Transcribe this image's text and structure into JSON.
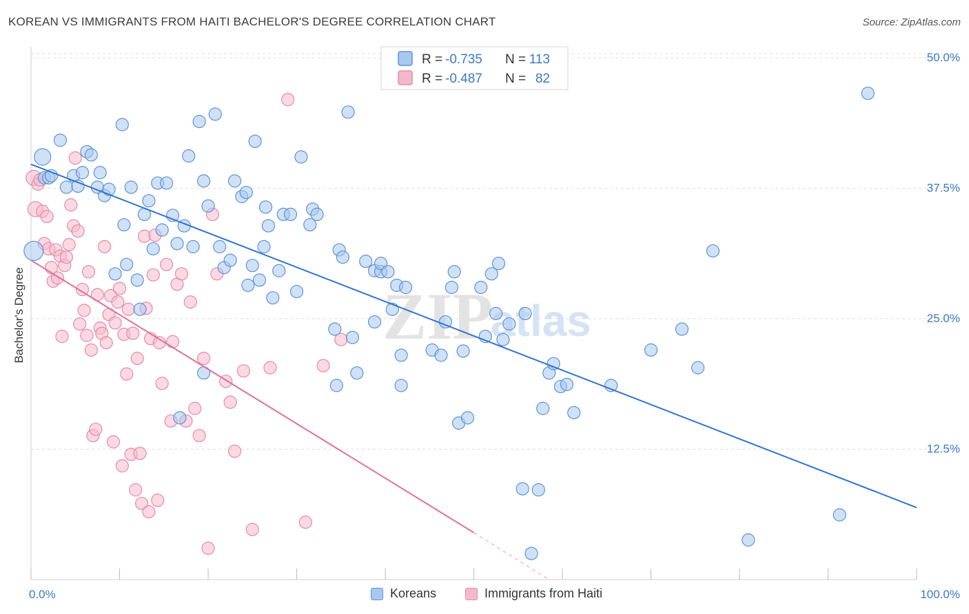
{
  "title": "KOREAN VS IMMIGRANTS FROM HAITI BACHELOR'S DEGREE CORRELATION CHART",
  "source": "Source: ZipAtlas.com",
  "watermark": {
    "zip": "ZIP",
    "atlas": "atlas"
  },
  "colors": {
    "blue_fill": "#a9c8ef",
    "blue_stroke": "#5b93d6",
    "blue_line": "#2e74d0",
    "blue_text": "#3b78c9",
    "pink_fill": "#f5b9cc",
    "pink_stroke": "#e48aa8",
    "pink_line": "#e0709a",
    "grid": "#dcdcdc",
    "text": "#333333"
  },
  "legend_box": {
    "rows": [
      {
        "r_label": "R =",
        "r_value": "-0.735",
        "n_label": "N =",
        "n_value": "113"
      },
      {
        "r_label": "R =",
        "r_value": "-0.487",
        "n_label": "N =",
        "n_value": "82"
      }
    ]
  },
  "legend_bottom": {
    "koreans": "Koreans",
    "haiti": "Immigrants from Haiti"
  },
  "chart_data": {
    "type": "scatter",
    "xlabel": "",
    "ylabel": "Bachelor's Degree",
    "xlim": [
      0,
      100
    ],
    "ylim": [
      0,
      50
    ],
    "x_tick_labels": [
      "0.0%",
      "100.0%"
    ],
    "y_ticks": [
      12.5,
      25.0,
      37.5,
      50.0
    ],
    "y_tick_labels": [
      "12.5%",
      "25.0%",
      "37.5%",
      "50.0%"
    ],
    "grid": "horizontal dashed",
    "legend_position": "top-center",
    "series": [
      {
        "name": "Koreans",
        "r": -0.735,
        "n": 113,
        "trend": {
          "x": [
            0,
            100
          ],
          "y": [
            39.8,
            6.9
          ]
        },
        "points": [
          [
            0.3,
            31.5
          ],
          [
            1.3,
            40.5
          ],
          [
            1.5,
            38.5
          ],
          [
            2.0,
            38.5
          ],
          [
            2.3,
            38.7
          ],
          [
            3.3,
            42.1
          ],
          [
            4.0,
            37.6
          ],
          [
            4.8,
            38.7
          ],
          [
            5.3,
            37.7
          ],
          [
            5.8,
            39.0
          ],
          [
            6.3,
            41.0
          ],
          [
            6.8,
            40.7
          ],
          [
            7.5,
            37.6
          ],
          [
            7.8,
            39.0
          ],
          [
            8.3,
            36.8
          ],
          [
            8.8,
            37.4
          ],
          [
            9.5,
            29.3
          ],
          [
            10.3,
            43.6
          ],
          [
            10.5,
            34.0
          ],
          [
            10.8,
            30.2
          ],
          [
            11.3,
            37.6
          ],
          [
            12.0,
            28.7
          ],
          [
            12.3,
            25.9
          ],
          [
            12.8,
            35.0
          ],
          [
            13.3,
            36.3
          ],
          [
            13.8,
            31.7
          ],
          [
            14.3,
            38.0
          ],
          [
            14.8,
            33.5
          ],
          [
            15.3,
            38.0
          ],
          [
            16.0,
            34.9
          ],
          [
            16.5,
            32.2
          ],
          [
            16.8,
            15.5
          ],
          [
            17.3,
            33.9
          ],
          [
            17.8,
            40.6
          ],
          [
            18.3,
            31.9
          ],
          [
            19.0,
            43.9
          ],
          [
            19.5,
            38.2
          ],
          [
            19.5,
            19.8
          ],
          [
            20.0,
            35.8
          ],
          [
            20.8,
            44.6
          ],
          [
            21.3,
            31.9
          ],
          [
            21.8,
            29.9
          ],
          [
            22.5,
            30.6
          ],
          [
            23.0,
            38.2
          ],
          [
            23.8,
            36.7
          ],
          [
            24.3,
            37.1
          ],
          [
            24.5,
            28.2
          ],
          [
            25.0,
            30.1
          ],
          [
            25.3,
            42.0
          ],
          [
            25.8,
            28.7
          ],
          [
            26.3,
            31.9
          ],
          [
            26.5,
            35.7
          ],
          [
            26.8,
            33.9
          ],
          [
            27.3,
            27.0
          ],
          [
            28.0,
            29.6
          ],
          [
            28.5,
            35.0
          ],
          [
            29.3,
            35.0
          ],
          [
            30.0,
            27.6
          ],
          [
            30.5,
            40.5
          ],
          [
            31.5,
            34.0
          ],
          [
            31.8,
            35.5
          ],
          [
            32.3,
            35.0
          ],
          [
            34.3,
            24.0
          ],
          [
            34.5,
            18.6
          ],
          [
            34.8,
            31.6
          ],
          [
            35.2,
            30.9
          ],
          [
            35.8,
            44.8
          ],
          [
            36.3,
            23.2
          ],
          [
            36.8,
            19.8
          ],
          [
            37.8,
            30.5
          ],
          [
            38.8,
            29.6
          ],
          [
            38.8,
            24.7
          ],
          [
            39.5,
            29.5
          ],
          [
            39.5,
            30.3
          ],
          [
            40.3,
            29.5
          ],
          [
            40.8,
            25.9
          ],
          [
            41.3,
            28.2
          ],
          [
            41.8,
            21.5
          ],
          [
            41.8,
            18.6
          ],
          [
            42.3,
            28.0
          ],
          [
            45.3,
            22.0
          ],
          [
            46.3,
            21.5
          ],
          [
            46.8,
            24.7
          ],
          [
            47.5,
            28.0
          ],
          [
            47.8,
            29.5
          ],
          [
            48.3,
            15.0
          ],
          [
            48.8,
            21.9
          ],
          [
            49.3,
            15.5
          ],
          [
            50.8,
            28.0
          ],
          [
            51.3,
            23.3
          ],
          [
            52.0,
            29.3
          ],
          [
            52.5,
            25.5
          ],
          [
            52.8,
            30.3
          ],
          [
            53.3,
            23.0
          ],
          [
            54.0,
            24.5
          ],
          [
            55.5,
            8.7
          ],
          [
            55.8,
            25.5
          ],
          [
            56.5,
            2.5
          ],
          [
            57.3,
            8.6
          ],
          [
            57.8,
            16.4
          ],
          [
            58.5,
            19.8
          ],
          [
            59.0,
            20.7
          ],
          [
            59.8,
            18.5
          ],
          [
            60.5,
            18.7
          ],
          [
            61.3,
            16.0
          ],
          [
            65.5,
            18.6
          ],
          [
            70.0,
            22.0
          ],
          [
            73.5,
            24.0
          ],
          [
            75.3,
            20.3
          ],
          [
            77.0,
            31.5
          ],
          [
            81.0,
            3.8
          ],
          [
            91.3,
            6.2
          ],
          [
            94.5,
            46.6
          ]
        ]
      },
      {
        "name": "Immigrants from Haiti",
        "r": -0.487,
        "n": 82,
        "trend": {
          "x": [
            0,
            50
          ],
          "y": [
            30.6,
            4.5
          ]
        },
        "trend_dashed": {
          "x": [
            50,
            58.5
          ],
          "y": [
            4.5,
            0
          ]
        },
        "points": [
          [
            0.3,
            38.5
          ],
          [
            0.5,
            35.5
          ],
          [
            0.8,
            37.9
          ],
          [
            1.0,
            38.3
          ],
          [
            1.3,
            35.3
          ],
          [
            1.5,
            32.2
          ],
          [
            1.8,
            34.8
          ],
          [
            2.0,
            31.7
          ],
          [
            2.3,
            29.9
          ],
          [
            2.5,
            28.6
          ],
          [
            2.8,
            31.6
          ],
          [
            3.0,
            28.9
          ],
          [
            3.3,
            31.0
          ],
          [
            3.5,
            23.3
          ],
          [
            3.8,
            30.1
          ],
          [
            4.0,
            30.9
          ],
          [
            4.3,
            32.1
          ],
          [
            4.5,
            35.9
          ],
          [
            4.8,
            33.9
          ],
          [
            5.0,
            40.4
          ],
          [
            5.3,
            33.4
          ],
          [
            5.5,
            24.5
          ],
          [
            5.8,
            27.8
          ],
          [
            6.0,
            25.8
          ],
          [
            6.3,
            23.4
          ],
          [
            6.5,
            29.5
          ],
          [
            6.8,
            22.0
          ],
          [
            7.0,
            13.8
          ],
          [
            7.3,
            14.4
          ],
          [
            7.5,
            27.3
          ],
          [
            7.8,
            24.1
          ],
          [
            8.0,
            23.6
          ],
          [
            8.3,
            31.9
          ],
          [
            8.5,
            22.7
          ],
          [
            8.8,
            25.4
          ],
          [
            9.0,
            27.2
          ],
          [
            9.3,
            13.2
          ],
          [
            9.5,
            24.6
          ],
          [
            9.8,
            26.6
          ],
          [
            10.0,
            27.9
          ],
          [
            10.3,
            10.9
          ],
          [
            10.5,
            23.5
          ],
          [
            10.8,
            19.7
          ],
          [
            11.0,
            25.9
          ],
          [
            11.3,
            12.0
          ],
          [
            11.5,
            23.6
          ],
          [
            11.8,
            8.6
          ],
          [
            12.0,
            21.2
          ],
          [
            12.3,
            12.1
          ],
          [
            12.5,
            7.3
          ],
          [
            12.8,
            32.9
          ],
          [
            13.0,
            26.0
          ],
          [
            13.3,
            6.5
          ],
          [
            13.5,
            23.1
          ],
          [
            13.8,
            29.2
          ],
          [
            14.0,
            33.0
          ],
          [
            14.3,
            7.6
          ],
          [
            14.5,
            22.7
          ],
          [
            14.8,
            18.8
          ],
          [
            15.3,
            30.2
          ],
          [
            15.8,
            15.2
          ],
          [
            16.0,
            22.8
          ],
          [
            16.5,
            28.3
          ],
          [
            17.0,
            29.3
          ],
          [
            17.5,
            15.2
          ],
          [
            18.0,
            26.6
          ],
          [
            18.5,
            16.4
          ],
          [
            19.0,
            13.8
          ],
          [
            19.5,
            21.2
          ],
          [
            20.0,
            3.0
          ],
          [
            20.5,
            35.0
          ],
          [
            21.0,
            29.3
          ],
          [
            22.0,
            19.0
          ],
          [
            22.5,
            17.0
          ],
          [
            23.0,
            12.3
          ],
          [
            24.0,
            20.0
          ],
          [
            25.0,
            4.8
          ],
          [
            27.0,
            20.3
          ],
          [
            29.0,
            46.0
          ],
          [
            31.0,
            5.5
          ],
          [
            33.0,
            20.5
          ],
          [
            35.0,
            23.0
          ]
        ]
      }
    ]
  }
}
